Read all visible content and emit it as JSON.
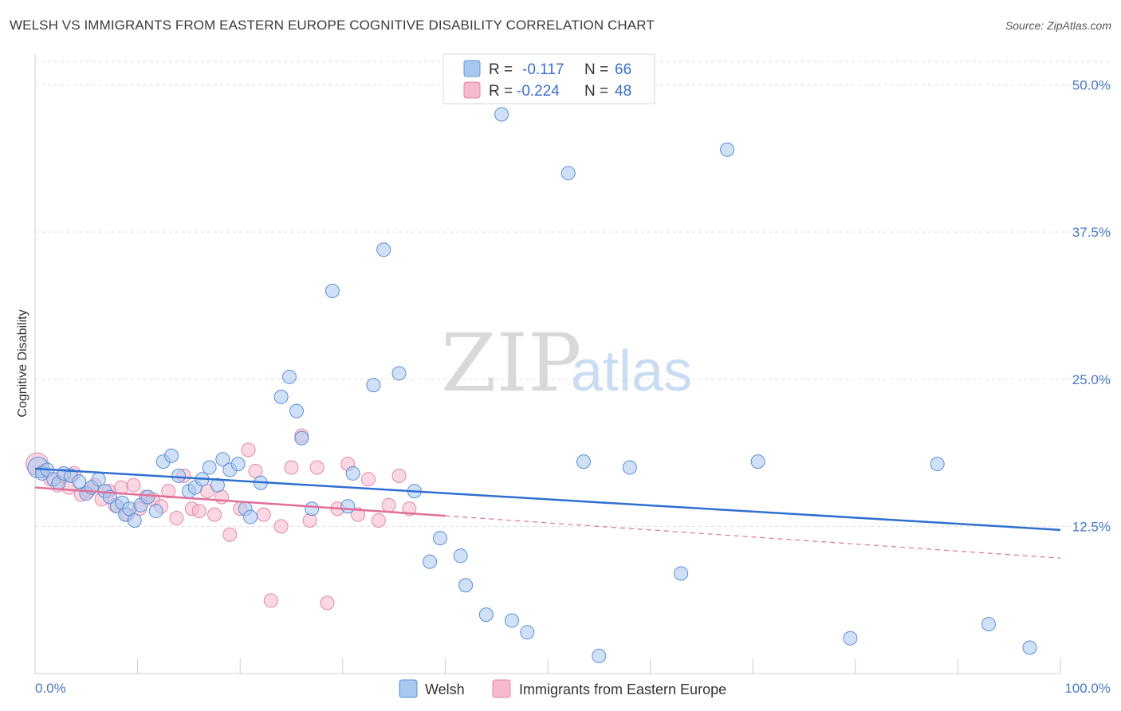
{
  "header": {
    "title": "WELSH VS IMMIGRANTS FROM EASTERN EUROPE COGNITIVE DISABILITY CORRELATION CHART",
    "source": "Source: ZipAtlas.com"
  },
  "watermark": {
    "zip": "ZIP",
    "atlas": "atlas"
  },
  "legend": {
    "rows": [
      {
        "r_label": "R =",
        "r_value": "-0.117",
        "n_label": "N =",
        "n_value": "66",
        "color": "#a9c8f0"
      },
      {
        "r_label": "R =",
        "r_value": "-0.224",
        "n_label": "N =",
        "n_value": "48",
        "color": "#f6b8cc"
      }
    ]
  },
  "bottom_legend": [
    "Welsh",
    "Immigrants from Eastern Europe"
  ],
  "colors": {
    "welsh_fill": "#a9c8f0",
    "welsh_stroke": "#5b8fd6",
    "welsh_line": "#2f6fd1",
    "imm_fill": "#f6b8cc",
    "imm_stroke": "#e387a7",
    "imm_line": "#e0709a",
    "tick_text": "#4a78c4",
    "grid": "#dddddd"
  },
  "chart_data": {
    "type": "scatter",
    "ylabel": "Cognitive Disability",
    "xlim": [
      0,
      100
    ],
    "ylim": [
      0,
      52
    ],
    "x_tick_labels": [
      "0.0%",
      "100.0%"
    ],
    "y_ticks": [
      12.5,
      25.0,
      37.5,
      50.0
    ],
    "y_tick_labels": [
      "12.5%",
      "25.0%",
      "37.5%",
      "50.0%"
    ],
    "grid": true,
    "legend_position": "top-center",
    "series": [
      {
        "name": "Welsh",
        "points": [
          [
            0.3,
            17.5
          ],
          [
            0.7,
            17.0
          ],
          [
            1.2,
            17.3
          ],
          [
            1.8,
            16.5
          ],
          [
            2.3,
            16.2
          ],
          [
            2.8,
            17.0
          ],
          [
            3.5,
            16.8
          ],
          [
            4.3,
            16.3
          ],
          [
            5.0,
            15.3
          ],
          [
            5.5,
            15.8
          ],
          [
            6.2,
            16.5
          ],
          [
            6.8,
            15.5
          ],
          [
            7.3,
            15.0
          ],
          [
            8.0,
            14.2
          ],
          [
            8.5,
            14.5
          ],
          [
            8.8,
            13.5
          ],
          [
            9.2,
            14.0
          ],
          [
            9.7,
            13.0
          ],
          [
            10.3,
            14.3
          ],
          [
            11.0,
            15.0
          ],
          [
            11.8,
            13.8
          ],
          [
            12.5,
            18.0
          ],
          [
            13.3,
            18.5
          ],
          [
            14.0,
            16.8
          ],
          [
            15.0,
            15.5
          ],
          [
            15.6,
            15.8
          ],
          [
            16.3,
            16.5
          ],
          [
            17.0,
            17.5
          ],
          [
            17.8,
            16.0
          ],
          [
            18.3,
            18.2
          ],
          [
            19.0,
            17.3
          ],
          [
            19.8,
            17.8
          ],
          [
            20.5,
            14.0
          ],
          [
            21.0,
            13.3
          ],
          [
            22.0,
            16.2
          ],
          [
            24.0,
            23.5
          ],
          [
            24.8,
            25.2
          ],
          [
            25.5,
            22.3
          ],
          [
            26.0,
            20.0
          ],
          [
            27.0,
            14.0
          ],
          [
            29.0,
            32.5
          ],
          [
            30.5,
            14.2
          ],
          [
            31.0,
            17.0
          ],
          [
            33.0,
            24.5
          ],
          [
            34.0,
            36.0
          ],
          [
            35.5,
            25.5
          ],
          [
            37.0,
            15.5
          ],
          [
            38.5,
            9.5
          ],
          [
            39.5,
            11.5
          ],
          [
            41.5,
            10.0
          ],
          [
            42.0,
            7.5
          ],
          [
            44.0,
            5.0
          ],
          [
            45.5,
            47.5
          ],
          [
            46.5,
            4.5
          ],
          [
            48.0,
            3.5
          ],
          [
            52.0,
            42.5
          ],
          [
            53.5,
            18.0
          ],
          [
            55.0,
            1.5
          ],
          [
            58.0,
            17.5
          ],
          [
            63.0,
            8.5
          ],
          [
            67.5,
            44.5
          ],
          [
            70.5,
            18.0
          ],
          [
            79.5,
            3.0
          ],
          [
            88.0,
            17.8
          ],
          [
            93.0,
            4.2
          ],
          [
            97.0,
            2.2
          ]
        ],
        "trend": {
          "x": [
            0,
            100
          ],
          "y": [
            17.4,
            12.2
          ]
        }
      },
      {
        "name": "Immigrants from Eastern Europe",
        "points": [
          [
            0.2,
            17.8
          ],
          [
            0.8,
            17.2
          ],
          [
            1.5,
            16.5
          ],
          [
            2.2,
            16.0
          ],
          [
            2.8,
            16.8
          ],
          [
            3.3,
            15.8
          ],
          [
            3.8,
            17.0
          ],
          [
            4.5,
            15.2
          ],
          [
            5.2,
            15.5
          ],
          [
            5.8,
            16.0
          ],
          [
            6.5,
            14.8
          ],
          [
            7.2,
            15.5
          ],
          [
            7.8,
            14.3
          ],
          [
            8.4,
            15.8
          ],
          [
            9.0,
            13.5
          ],
          [
            9.6,
            16.0
          ],
          [
            10.2,
            14.0
          ],
          [
            10.8,
            15.0
          ],
          [
            11.5,
            14.8
          ],
          [
            12.3,
            14.2
          ],
          [
            13.0,
            15.5
          ],
          [
            13.8,
            13.2
          ],
          [
            14.5,
            16.8
          ],
          [
            15.3,
            14.0
          ],
          [
            16.0,
            13.8
          ],
          [
            16.8,
            15.5
          ],
          [
            17.5,
            13.5
          ],
          [
            18.2,
            15.0
          ],
          [
            19.0,
            11.8
          ],
          [
            20.0,
            14.0
          ],
          [
            20.8,
            19.0
          ],
          [
            21.5,
            17.2
          ],
          [
            22.3,
            13.5
          ],
          [
            23.0,
            6.2
          ],
          [
            24.0,
            12.5
          ],
          [
            25.0,
            17.5
          ],
          [
            26.0,
            20.2
          ],
          [
            26.8,
            13.0
          ],
          [
            27.5,
            17.5
          ],
          [
            28.5,
            6.0
          ],
          [
            29.5,
            14.0
          ],
          [
            30.5,
            17.8
          ],
          [
            31.5,
            13.5
          ],
          [
            32.5,
            16.5
          ],
          [
            33.5,
            13.0
          ],
          [
            34.5,
            14.3
          ],
          [
            35.5,
            16.8
          ],
          [
            36.5,
            14.0
          ]
        ],
        "trend": {
          "x": [
            0,
            40,
            100
          ],
          "y": [
            15.8,
            13.4,
            9.8
          ]
        }
      }
    ]
  }
}
